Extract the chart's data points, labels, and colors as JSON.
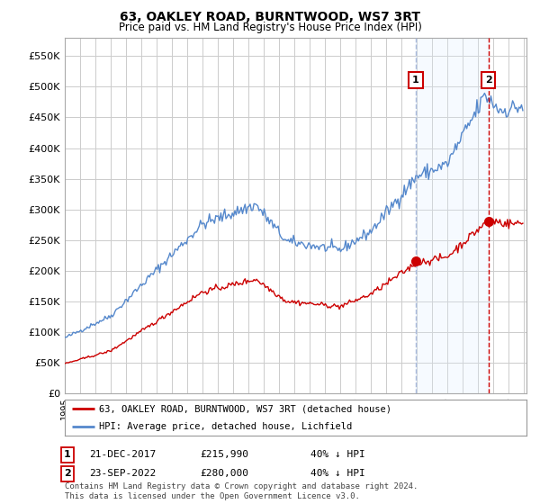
{
  "title": "63, OAKLEY ROAD, BURNTWOOD, WS7 3RT",
  "subtitle": "Price paid vs. HM Land Registry's House Price Index (HPI)",
  "ytick_values": [
    0,
    50000,
    100000,
    150000,
    200000,
    250000,
    300000,
    350000,
    400000,
    450000,
    500000,
    550000
  ],
  "ylim": [
    0,
    580000
  ],
  "hpi_color": "#5588cc",
  "hpi_shade_color": "#ddeeff",
  "price_color": "#cc0000",
  "vline1_color": "#aabbdd",
  "vline2_color": "#cc0000",
  "sale1_date": "21-DEC-2017",
  "sale1_price": "£215,990",
  "sale1_pct": "40% ↓ HPI",
  "sale1_price_val": 215990,
  "sale2_date": "23-SEP-2022",
  "sale2_price": "£280,000",
  "sale2_pct": "40% ↓ HPI",
  "sale2_price_val": 280000,
  "sale1_x": 2017.96,
  "sale2_x": 2022.71,
  "legend1_label": "63, OAKLEY ROAD, BURNTWOOD, WS7 3RT (detached house)",
  "legend2_label": "HPI: Average price, detached house, Lichfield",
  "footnote": "Contains HM Land Registry data © Crown copyright and database right 2024.\nThis data is licensed under the Open Government Licence v3.0.",
  "background_color": "#ffffff",
  "grid_color": "#cccccc"
}
